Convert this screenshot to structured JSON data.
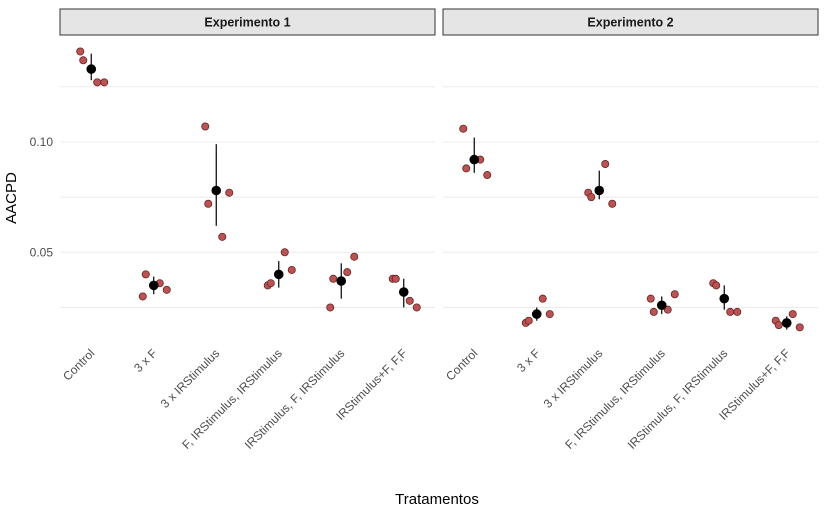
{
  "chart_data": {
    "type": "scatter",
    "xlabel": "Tratamentos",
    "ylabel": "AACPD",
    "yticks": [
      0.05,
      0.1
    ],
    "ytick_labels": [
      "0.05",
      "0.10"
    ],
    "ylim": [
      0.008,
      0.148
    ],
    "colors": {
      "raw": "#b85454",
      "mean": "#000000"
    },
    "panels": [
      {
        "title": "Experimento 1",
        "categories": [
          "Control",
          "3 x F",
          "3 x IRStimulus",
          "F, IRStimulus, IRStimulus",
          "IRStimulus, F, IRStimulus",
          "IRStimulus+F, F,F"
        ],
        "raw": [
          [
            0.141,
            0.137,
            0.127,
            0.127
          ],
          [
            0.03,
            0.04,
            0.036,
            0.033
          ],
          [
            0.107,
            0.072,
            0.057,
            0.077
          ],
          [
            0.035,
            0.036,
            0.05,
            0.042
          ],
          [
            0.025,
            0.038,
            0.041,
            0.048
          ],
          [
            0.038,
            0.038,
            0.028,
            0.025
          ]
        ],
        "mean": [
          0.133,
          0.035,
          0.078,
          0.04,
          0.037,
          0.032
        ],
        "err_low": [
          0.128,
          0.031,
          0.062,
          0.034,
          0.029,
          0.025
        ],
        "err_high": [
          0.14,
          0.039,
          0.099,
          0.046,
          0.045,
          0.038
        ]
      },
      {
        "title": "Experimento 2",
        "categories": [
          "Control",
          "3 x F",
          "3 x IRStimulus",
          "F, IRStimulus, IRStimulus",
          "IRStimulus, F, IRStimulus",
          "IRStimulus+F, F,F"
        ],
        "raw": [
          [
            0.106,
            0.088,
            0.092,
            0.085
          ],
          [
            0.018,
            0.019,
            0.029,
            0.022
          ],
          [
            0.077,
            0.075,
            0.09,
            0.072
          ],
          [
            0.029,
            0.023,
            0.024,
            0.031
          ],
          [
            0.036,
            0.035,
            0.023,
            0.023
          ],
          [
            0.019,
            0.017,
            0.022,
            0.016
          ]
        ],
        "mean": [
          0.092,
          0.022,
          0.078,
          0.026,
          0.029,
          0.018
        ],
        "err_low": [
          0.086,
          0.019,
          0.074,
          0.022,
          0.024,
          0.015
        ],
        "err_high": [
          0.102,
          0.025,
          0.087,
          0.03,
          0.035,
          0.021
        ]
      }
    ]
  }
}
